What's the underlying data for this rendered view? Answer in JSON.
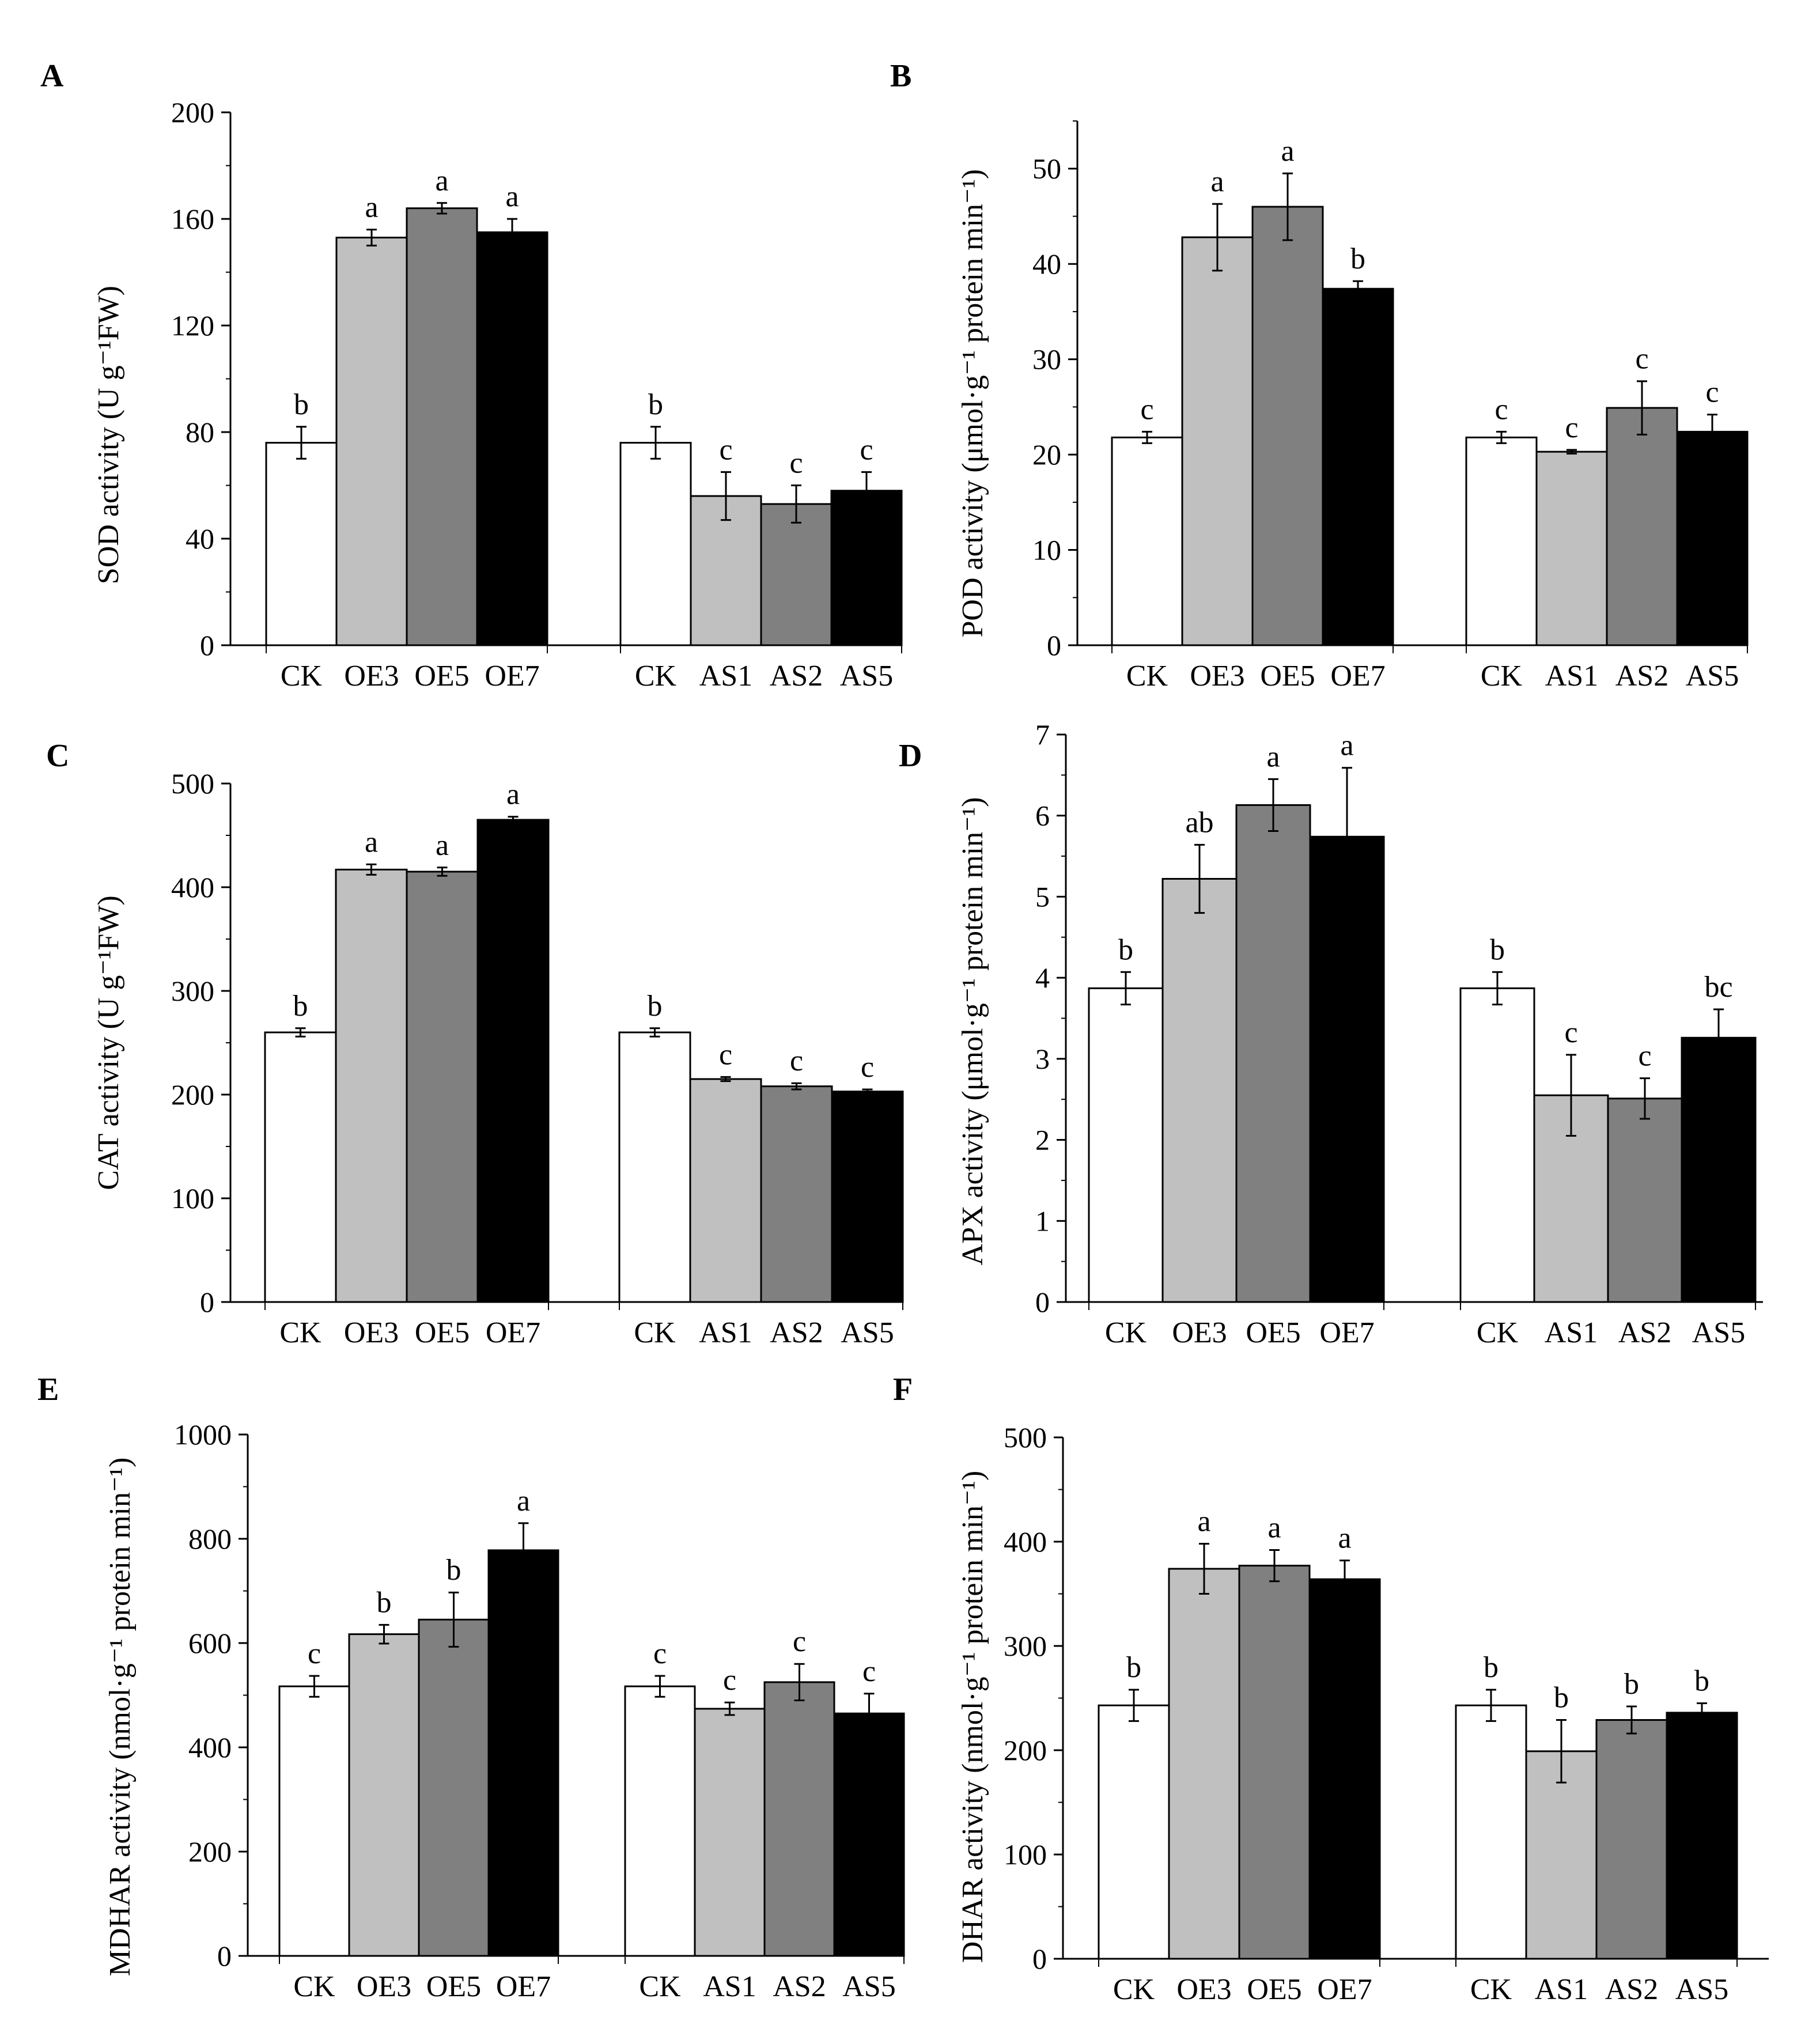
{
  "colors": {
    "white": "#ffffff",
    "light_gray": "#c0c0c0",
    "dark_gray": "#808080",
    "black": "#000000"
  },
  "chart_data": [
    {
      "panel": "A",
      "type": "bar",
      "categories": [
        "CK",
        "OE3",
        "OE5",
        "OE7",
        "CK",
        "AS1",
        "AS2",
        "AS5"
      ],
      "values": [
        76,
        153,
        164,
        155,
        76,
        56,
        53,
        58
      ],
      "errors": [
        6,
        3,
        2,
        5,
        6,
        9,
        7,
        7
      ],
      "letters": [
        "b",
        "a",
        "a",
        "a",
        "b",
        "c",
        "c",
        "c"
      ],
      "ylabel": "SOD activity (U g⁻¹FW)",
      "ylim": [
        0,
        200
      ],
      "ticks": [
        0,
        40,
        80,
        120,
        160,
        200
      ],
      "minor_step": 20
    },
    {
      "panel": "B",
      "type": "bar",
      "categories": [
        "CK",
        "OE3",
        "OE5",
        "OE7",
        "CK",
        "AS1",
        "AS2",
        "AS5"
      ],
      "values": [
        21.8,
        42.8,
        46.0,
        37.4,
        21.8,
        20.3,
        24.9,
        22.4
      ],
      "errors": [
        0.6,
        3.5,
        3.5,
        0.8,
        0.6,
        0.2,
        2.8,
        1.8
      ],
      "letters": [
        "c",
        "a",
        "a",
        "b",
        "c",
        "c",
        "c",
        "c"
      ],
      "ylabel": "POD activity (μmol·g⁻¹ protein min⁻¹)",
      "ylim": [
        0,
        55
      ],
      "ticks": [
        0,
        10,
        20,
        30,
        40,
        50
      ],
      "minor_step": 5
    },
    {
      "panel": "C",
      "type": "bar",
      "categories": [
        "CK",
        "OE3",
        "OE5",
        "OE7",
        "CK",
        "AS1",
        "AS2",
        "AS5"
      ],
      "values": [
        260,
        417,
        415,
        465,
        260,
        215,
        208,
        203
      ],
      "errors": [
        4,
        5,
        4,
        3,
        4,
        2,
        3,
        2
      ],
      "letters": [
        "b",
        "a",
        "a",
        "a",
        "b",
        "c",
        "c",
        "c"
      ],
      "ylabel": "CAT activity (U g⁻¹FW)",
      "ylim": [
        0,
        500
      ],
      "ticks": [
        0,
        100,
        200,
        300,
        400,
        500
      ],
      "minor_step": 50
    },
    {
      "panel": "D",
      "type": "bar",
      "categories": [
        "CK",
        "OE3",
        "OE5",
        "OE7",
        "CK",
        "AS1",
        "AS2",
        "AS5"
      ],
      "values": [
        3.87,
        5.22,
        6.13,
        5.74,
        3.87,
        2.55,
        2.51,
        3.26
      ],
      "errors": [
        0.2,
        0.42,
        0.32,
        0.85,
        0.2,
        0.5,
        0.25,
        0.35
      ],
      "letters": [
        "b",
        "ab",
        "a",
        "a",
        "b",
        "c",
        "c",
        "bc"
      ],
      "ylabel": "APX activity (μmol·g⁻¹ protein min⁻¹)",
      "ylim": [
        0,
        7
      ],
      "ticks": [
        0,
        1,
        2,
        3,
        4,
        5,
        6,
        7
      ],
      "minor_step": 0.5
    },
    {
      "panel": "E",
      "type": "bar",
      "categories": [
        "CK",
        "OE3",
        "OE5",
        "OE7",
        "CK",
        "AS1",
        "AS2",
        "AS5"
      ],
      "values": [
        517,
        617,
        645,
        778,
        517,
        474,
        525,
        465
      ],
      "errors": [
        20,
        18,
        52,
        52,
        20,
        12,
        35,
        38
      ],
      "letters": [
        "c",
        "b",
        "b",
        "a",
        "c",
        "c",
        "c",
        "c"
      ],
      "ylabel": "MDHAR activity (nmol·g⁻¹ protein min⁻¹)",
      "ylim": [
        0,
        1000
      ],
      "ticks": [
        0,
        200,
        400,
        600,
        800,
        1000
      ],
      "minor_step": 100
    },
    {
      "panel": "F",
      "type": "bar",
      "categories": [
        "CK",
        "OE3",
        "OE5",
        "OE7",
        "CK",
        "AS1",
        "AS2",
        "AS5"
      ],
      "values": [
        243,
        374,
        377,
        364,
        243,
        199,
        229,
        236
      ],
      "errors": [
        15,
        24,
        15,
        18,
        15,
        30,
        13,
        9
      ],
      "letters": [
        "b",
        "a",
        "a",
        "a",
        "b",
        "b",
        "b",
        "b"
      ],
      "ylabel": "DHAR activity (nmol·g⁻¹ protein min⁻¹)",
      "ylim": [
        0,
        500
      ],
      "ticks": [
        0,
        100,
        200,
        300,
        400,
        500
      ],
      "minor_step": 50
    }
  ]
}
